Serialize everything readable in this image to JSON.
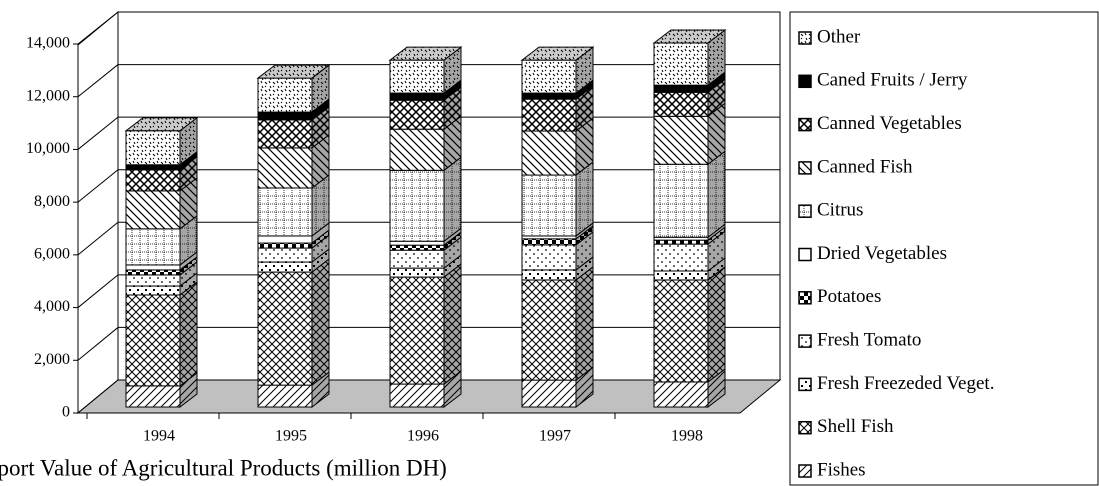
{
  "chart_data": {
    "type": "bar3d_stacked",
    "title": "Export Value of Agricultural Products (million DH)",
    "categories": [
      "1994",
      "1995",
      "1996",
      "1997",
      "1998"
    ],
    "series": [
      {
        "name": "Fishes",
        "color": "#ffffff",
        "values": [
          800,
          830,
          870,
          1020,
          950
        ]
      },
      {
        "name": "Shell Fish",
        "color": "#ffffff",
        "values": [
          3450,
          4290,
          4060,
          3800,
          3870
        ]
      },
      {
        "name": "Fresh Freezeded Veget.",
        "color": "#ffffff",
        "values": [
          340,
          380,
          340,
          380,
          340
        ]
      },
      {
        "name": "Fresh Tomato",
        "color": "#ffffff",
        "values": [
          420,
          530,
          680,
          950,
          1020
        ]
      },
      {
        "name": "Potatoes",
        "color": "#ffffff",
        "values": [
          190,
          190,
          190,
          230,
          150
        ]
      },
      {
        "name": "Dried Vegetables",
        "color": "#ffffff",
        "values": [
          190,
          270,
          150,
          110,
          110
        ]
      },
      {
        "name": "Citrus",
        "color": "#ffffff",
        "values": [
          1370,
          1820,
          2690,
          2310,
          2770
        ]
      },
      {
        "name": "Canned Fish",
        "color": "#ffffff",
        "values": [
          1440,
          1520,
          1560,
          1670,
          1820
        ]
      },
      {
        "name": "Canned Vegetables",
        "color": "#ffffff",
        "values": [
          800,
          1060,
          1100,
          1210,
          910
        ]
      },
      {
        "name": "Caned Fruits / Jerry",
        "color": "#000000",
        "values": [
          190,
          300,
          270,
          230,
          270
        ]
      },
      {
        "name": "Other",
        "color": "#ffffff",
        "values": [
          1290,
          1290,
          1250,
          1250,
          1600
        ]
      }
    ],
    "ylim": [
      0,
      14000
    ],
    "yticks": [
      0,
      {
        "value": 2000,
        "label": "2,000"
      },
      {
        "value": 4000,
        "label": "4,000"
      },
      {
        "value": 6000,
        "label": "6,000"
      },
      {
        "value": 8000,
        "label": "8,000"
      },
      {
        "value": 10000,
        "label": "10,000"
      },
      {
        "value": 12000,
        "label": "12,000"
      },
      {
        "value": 14000,
        "label": "14,000"
      }
    ],
    "grid": true,
    "legend": "right"
  }
}
